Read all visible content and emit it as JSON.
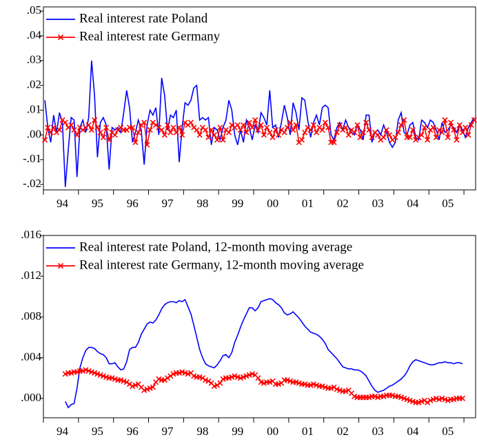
{
  "chart_data": [
    {
      "type": "line",
      "categories": [
        null,
        null,
        null,
        null,
        null,
        null,
        "94",
        null,
        null,
        null,
        null,
        null,
        null,
        null,
        null,
        null,
        null,
        null,
        "95",
        null,
        null,
        null,
        null,
        null,
        null,
        null,
        null,
        null,
        null,
        null,
        "96",
        null,
        null,
        null,
        null,
        null,
        null,
        null,
        null,
        null,
        null,
        null,
        "97",
        null,
        null,
        null,
        null,
        null,
        null,
        null,
        null,
        null,
        null,
        null,
        "98",
        null,
        null,
        null,
        null,
        null,
        null,
        null,
        null,
        null,
        null,
        null,
        "99",
        null,
        null,
        null,
        null,
        null,
        null,
        null,
        null,
        null,
        null,
        null,
        "00",
        null,
        null,
        null,
        null,
        null,
        null,
        null,
        null,
        null,
        null,
        null,
        "01",
        null,
        null,
        null,
        null,
        null,
        null,
        null,
        null,
        null,
        null,
        null,
        "02",
        null,
        null,
        null,
        null,
        null,
        null,
        null,
        null,
        null,
        null,
        null,
        "03",
        null,
        null,
        null,
        null,
        null,
        null,
        null,
        null,
        null,
        null,
        null,
        "04",
        null,
        null,
        null,
        null,
        null,
        null,
        null,
        null,
        null,
        null,
        null,
        "05",
        null,
        null,
        null,
        null,
        null,
        null,
        null,
        null,
        null
      ],
      "series": [
        {
          "name": "Real interest rate Poland",
          "color": "#0000ff",
          "values": [
            0.014,
            0.003,
            -0.003,
            0.008,
            0.001,
            0.009,
            0.005,
            -0.021,
            -0.006,
            0.007,
            0.006,
            -0.017,
            0.003,
            0.006,
            0.001,
            0.007,
            0.03,
            0.016,
            -0.009,
            0.005,
            0.007,
            0.004,
            -0.014,
            0.003,
            0.002,
            0.003,
            0.001,
            0.009,
            0.018,
            0.011,
            -0.003,
            0.001,
            0.006,
            0.002,
            -0.012,
            0.004,
            0.01,
            0.008,
            0.011,
            0.0,
            0.023,
            0.016,
            0.002,
            0.008,
            0.007,
            0.01,
            -0.011,
            0.003,
            0.013,
            0.012,
            0.014,
            0.019,
            0.02,
            0.006,
            0.007,
            0.006,
            0.007,
            -0.004,
            0.003,
            0.002,
            -0.002,
            0.003,
            0.006,
            0.014,
            0.01,
            0.0,
            -0.004,
            0.002,
            -0.003,
            0.006,
            0.003,
            -0.002,
            0.004,
            0.001,
            0.009,
            0.007,
            0.004,
            0.018,
            0.003,
            0.004,
            -0.001,
            0.005,
            0.012,
            0.007,
            0.0,
            0.013,
            0.009,
            0.002,
            0.015,
            0.014,
            0.006,
            -0.001,
            0.005,
            0.008,
            0.004,
            0.011,
            0.012,
            0.011,
            0.0,
            -0.002,
            0.003,
            0.005,
            0.002,
            0.006,
            0.003,
            0.001,
            0.0,
            0.004,
            0.002,
            -0.002,
            0.008,
            0.008,
            -0.003,
            0.001,
            0.002,
            0.0,
            0.004,
            0.001,
            -0.003,
            -0.005,
            -0.003,
            0.006,
            0.009,
            0.001,
            0.0,
            0.004,
            0.005,
            -0.001,
            -0.002,
            0.006,
            0.005,
            0.003,
            0.006,
            0.005,
            0.002,
            -0.002,
            0.005,
            0.001,
            0.002,
            0.004,
            0.003,
            0.001,
            0.004,
            0.002,
            -0.001,
            0.003,
            0.005,
            0.007
          ]
        },
        {
          "name": "Real interest rate Germany",
          "color": "#ff0000",
          "marker": "x",
          "values": [
            -0.002,
            0.003,
            0.001,
            0.003,
            0.001,
            0.002,
            0.006,
            0.005,
            0.003,
            0.004,
            0.002,
            0.0,
            0.003,
            0.002,
            0.003,
            0.004,
            0.002,
            0.006,
            0.003,
            0.001,
            -0.001,
            0.003,
            -0.002,
            0.001,
            0.0,
            0.002,
            0.003,
            0.002,
            0.002,
            0.003,
            0.003,
            -0.003,
            0.001,
            0.004,
            0.005,
            -0.004,
            0.002,
            0.005,
            0.004,
            0.003,
            0.002,
            0.0,
            0.004,
            0.001,
            0.003,
            0.001,
            0.003,
            0.0,
            0.005,
            0.004,
            0.005,
            0.003,
            0.002,
            0.0,
            0.003,
            0.002,
            -0.001,
            0.002,
            0.0,
            -0.002,
            0.003,
            -0.002,
            0.002,
            0.001,
            0.004,
            0.003,
            0.004,
            0.002,
            0.004,
            0.001,
            0.005,
            0.003,
            0.006,
            0.002,
            0.004,
            0.0,
            0.003,
            0.001,
            -0.001,
            0.002,
            0.0,
            0.002,
            0.001,
            0.003,
            0.005,
            0.002,
            0.004,
            -0.003,
            -0.002,
            0.001,
            0.003,
            0.002,
            0.004,
            0.001,
            0.003,
            0.002,
            0.005,
            0.003,
            -0.003,
            -0.003,
            0.001,
            0.004,
            0.002,
            0.003,
            0.0,
            0.002,
            0.001,
            0.004,
            -0.001,
            0.001,
            0.005,
            0.002,
            -0.001,
            0.001,
            0.0,
            -0.002,
            -0.001,
            0.002,
            0.0,
            -0.002,
            -0.001,
            0.001,
            0.004,
            0.006,
            -0.001,
            -0.001,
            0.002,
            -0.002,
            -0.001,
            0.0,
            0.003,
            -0.002,
            0.002,
            0.003,
            -0.001,
            0.002,
            0.001,
            0.006,
            -0.001,
            0.005,
            0.002,
            -0.002,
            0.004,
            0.001,
            0.003,
            0.0,
            0.004,
            0.006
          ]
        }
      ],
      "ylim": [
        -0.0222,
        0.0517
      ],
      "yticks": [
        {
          "value": 0.05,
          "label": ".05"
        },
        {
          "value": 0.04,
          "label": ".04"
        },
        {
          "value": 0.03,
          "label": ".03"
        },
        {
          "value": 0.02,
          "label": ".02"
        },
        {
          "value": 0.01,
          "label": ".01"
        },
        {
          "value": 0,
          "label": ".00"
        },
        {
          "value": -0.01,
          "label": "-.01"
        },
        {
          "value": -0.02,
          "label": "-.02"
        }
      ],
      "legend": "upper left"
    },
    {
      "type": "line",
      "categories": [
        null,
        null,
        null,
        null,
        null,
        null,
        "94",
        null,
        null,
        null,
        null,
        null,
        null,
        null,
        null,
        null,
        null,
        null,
        "95",
        null,
        null,
        null,
        null,
        null,
        null,
        null,
        null,
        null,
        null,
        null,
        "96",
        null,
        null,
        null,
        null,
        null,
        null,
        null,
        null,
        null,
        null,
        null,
        "97",
        null,
        null,
        null,
        null,
        null,
        null,
        null,
        null,
        null,
        null,
        null,
        "98",
        null,
        null,
        null,
        null,
        null,
        null,
        null,
        null,
        null,
        null,
        null,
        "99",
        null,
        null,
        null,
        null,
        null,
        null,
        null,
        null,
        null,
        null,
        null,
        "00",
        null,
        null,
        null,
        null,
        null,
        null,
        null,
        null,
        null,
        null,
        null,
        "01",
        null,
        null,
        null,
        null,
        null,
        null,
        null,
        null,
        null,
        null,
        null,
        "02",
        null,
        null,
        null,
        null,
        null,
        null,
        null,
        null,
        null,
        null,
        null,
        "03",
        null,
        null,
        null,
        null,
        null,
        null,
        null,
        null,
        null,
        null,
        null,
        "04",
        null,
        null,
        null,
        null,
        null,
        null,
        null,
        null,
        null,
        null,
        null,
        "05",
        null,
        null,
        null,
        null,
        null,
        null,
        null,
        null,
        null
      ],
      "series": [
        {
          "name": "Real interest rate Poland, 12-month moving average",
          "color": "#0000ff",
          "values": [
            null,
            null,
            null,
            null,
            null,
            null,
            null,
            -0.0003,
            -0.0009,
            -0.0006,
            -0.0005,
            0.001,
            0.003,
            0.004,
            0.0047,
            0.005,
            0.005,
            0.0049,
            0.0046,
            0.0044,
            0.0043,
            0.004,
            0.0034,
            0.0034,
            0.0035,
            0.0031,
            0.0028,
            0.0029,
            0.0036,
            0.0048,
            0.005,
            0.005,
            0.0055,
            0.0063,
            0.0068,
            0.0073,
            0.0075,
            0.0074,
            0.0077,
            0.0082,
            0.0088,
            0.0092,
            0.0094,
            0.0095,
            0.0095,
            0.0094,
            0.0096,
            0.0095,
            0.0097,
            0.009,
            0.0083,
            0.0072,
            0.006,
            0.0048,
            0.004,
            0.0034,
            0.0032,
            0.0031,
            0.003,
            0.0033,
            0.0037,
            0.0042,
            0.0043,
            0.004,
            0.0045,
            0.0055,
            0.0062,
            0.007,
            0.0077,
            0.0083,
            0.0089,
            0.0089,
            0.0086,
            0.0089,
            0.0095,
            0.0096,
            0.0097,
            0.0098,
            0.0097,
            0.0094,
            0.0092,
            0.0089,
            0.0084,
            0.0082,
            0.0083,
            0.0085,
            0.0082,
            0.0079,
            0.0075,
            0.0071,
            0.0068,
            0.0065,
            0.0064,
            0.0063,
            0.0061,
            0.0058,
            0.0054,
            0.0048,
            0.0045,
            0.0042,
            0.0039,
            0.0035,
            0.0031,
            0.003,
            0.0029,
            0.0029,
            0.0028,
            0.0028,
            0.0027,
            0.0025,
            0.0022,
            0.0017,
            0.0012,
            0.0008,
            0.0006,
            0.0007,
            0.0008,
            0.001,
            0.0012,
            0.0013,
            0.0015,
            0.0017,
            0.0019,
            0.0022,
            0.0026,
            0.0032,
            0.0036,
            0.0038,
            0.0037,
            0.0036,
            0.0035,
            0.0034,
            0.0033,
            0.0033,
            0.0034,
            0.0035,
            0.0035,
            0.0036,
            0.0035,
            0.0035,
            0.0034,
            0.0035,
            0.0035,
            0.0034,
            null,
            null,
            null,
            null
          ]
        },
        {
          "name": "Real interest rate Germany, 12-month moving average",
          "color": "#ff0000",
          "marker": "x",
          "values": [
            null,
            null,
            null,
            null,
            null,
            null,
            null,
            0.0024,
            0.0025,
            0.0025,
            0.0026,
            0.0026,
            0.0027,
            0.0027,
            0.0028,
            0.0027,
            0.0026,
            0.0025,
            0.0024,
            0.0023,
            0.0022,
            0.0021,
            0.002,
            0.002,
            0.0019,
            0.0018,
            0.0018,
            0.0017,
            0.0016,
            0.0014,
            0.0012,
            0.0013,
            0.0014,
            0.0011,
            0.0008,
            0.0009,
            0.001,
            0.0011,
            0.0016,
            0.0019,
            0.0018,
            0.0018,
            0.002,
            0.0022,
            0.0024,
            0.0025,
            0.0025,
            0.0026,
            0.0025,
            0.0024,
            0.0025,
            0.0022,
            0.0021,
            0.0021,
            0.002,
            0.0018,
            0.0017,
            0.0015,
            0.0012,
            0.0013,
            0.0015,
            0.0019,
            0.002,
            0.002,
            0.0021,
            0.0022,
            0.0021,
            0.002,
            0.0021,
            0.0022,
            0.0023,
            0.0024,
            0.0023,
            0.002,
            0.0016,
            0.0015,
            0.0016,
            0.0016,
            0.0017,
            0.0014,
            0.0014,
            0.0015,
            0.0018,
            0.0018,
            0.0017,
            0.0016,
            0.0016,
            0.0015,
            0.0014,
            0.0014,
            0.0013,
            0.0013,
            0.0014,
            0.0013,
            0.0012,
            0.0012,
            0.0011,
            0.001,
            0.001,
            0.0011,
            0.0009,
            0.0008,
            0.0007,
            0.0007,
            0.0008,
            0.0005,
            0.0002,
            0.0001,
            0.0001,
            0.0001,
            0.0001,
            0.0001,
            0.0002,
            0.0002,
            0.0001,
            0.0002,
            0.0002,
            0.0003,
            0.0003,
            0.0003,
            0.0002,
            0.0002,
            0.0001,
            0.0,
            -0.0001,
            -0.0002,
            -0.0003,
            -0.0004,
            -0.0004,
            -0.0003,
            -0.0002,
            -0.0004,
            -0.0002,
            -0.0001,
            0.0,
            -0.0001,
            0.0,
            -0.0001,
            -0.0002,
            -0.0001,
            -0.0001,
            0.0,
            0.0,
            0.0,
            null,
            null,
            null,
            null
          ]
        }
      ],
      "ylim": [
        -0.0019,
        0.016
      ],
      "yticks": [
        {
          "value": 0.016,
          "label": ".016"
        },
        {
          "value": 0.012,
          "label": ".012"
        },
        {
          "value": 0.008,
          "label": ".008"
        },
        {
          "value": 0.004,
          "label": ".004"
        },
        {
          "value": 0,
          "label": ".000"
        }
      ],
      "legend": "upper left"
    }
  ]
}
